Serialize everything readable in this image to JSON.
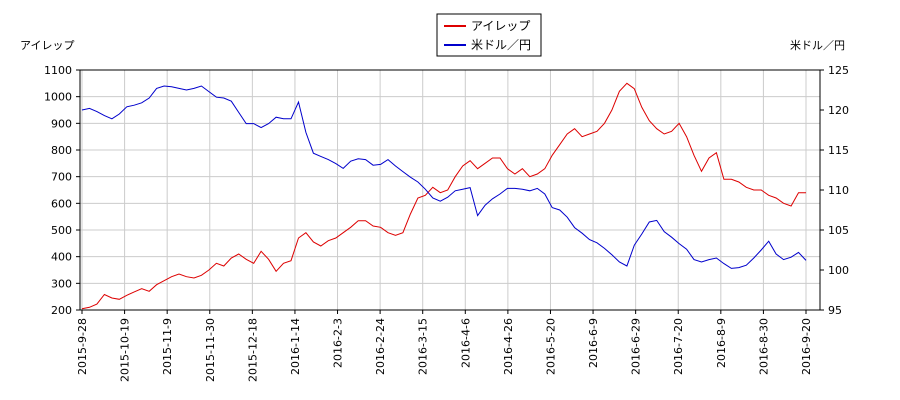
{
  "chart_data": {
    "type": "line",
    "y_left_label": "アイレップ",
    "y_right_label": "米ドル／円",
    "legend": "top-center",
    "grid": true,
    "colors": {
      "series_1": "#dd0000",
      "series_2": "#0000cc",
      "grid": "#cccccc"
    },
    "ylim_left": [
      200,
      1100
    ],
    "ylim_right": [
      95,
      125
    ],
    "y_left_ticks": [
      "200",
      "300",
      "400",
      "500",
      "600",
      "700",
      "800",
      "900",
      "1000",
      "1100"
    ],
    "y_right_ticks": [
      "95",
      "100",
      "105",
      "110",
      "115",
      "120",
      "125"
    ],
    "x_ticks": [
      "2015-9-28",
      "2015-10-19",
      "2015-11-9",
      "2015-11-30",
      "2015-12-18",
      "2016-1-14",
      "2016-2-3",
      "2016-2-24",
      "2016-3-15",
      "2016-4-6",
      "2016-4-26",
      "2016-5-20",
      "2016-6-9",
      "2016-6-29",
      "2016-7-20",
      "2016-8-9",
      "2016-8-30",
      "2016-9-20"
    ],
    "series": [
      {
        "name": "アイレップ",
        "axis": "left",
        "values": [
          205,
          210,
          222,
          258,
          245,
          240,
          255,
          268,
          280,
          270,
          295,
          310,
          325,
          335,
          325,
          320,
          330,
          350,
          375,
          365,
          395,
          410,
          390,
          375,
          420,
          390,
          345,
          375,
          385,
          470,
          490,
          455,
          440,
          460,
          470,
          490,
          510,
          535,
          535,
          515,
          510,
          490,
          480,
          490,
          560,
          620,
          630,
          660,
          640,
          650,
          700,
          740,
          760,
          730,
          750,
          770,
          770,
          730,
          710,
          730,
          700,
          710,
          730,
          780,
          820,
          860,
          880,
          850,
          860,
          870,
          900,
          950,
          1020,
          1050,
          1030,
          960,
          910,
          880,
          860,
          870,
          900,
          850,
          780,
          720,
          770,
          790,
          690,
          690,
          680,
          660,
          650,
          650,
          630,
          620,
          600,
          590,
          640,
          640
        ]
      },
      {
        "name": "米ドル／円",
        "axis": "right",
        "values": [
          120.0,
          120.2,
          119.8,
          119.3,
          118.9,
          119.5,
          120.4,
          120.6,
          120.9,
          121.5,
          122.7,
          123.0,
          122.9,
          122.7,
          122.5,
          122.7,
          123.0,
          122.3,
          121.6,
          121.5,
          121.1,
          119.7,
          118.3,
          118.3,
          117.8,
          118.3,
          119.1,
          118.9,
          118.9,
          121.0,
          117.2,
          114.6,
          114.2,
          113.8,
          113.3,
          112.7,
          113.6,
          113.9,
          113.8,
          113.1,
          113.2,
          113.8,
          113.0,
          112.3,
          111.6,
          111.0,
          110.1,
          109.0,
          108.6,
          109.1,
          109.9,
          110.1,
          110.3,
          106.8,
          108.1,
          108.9,
          109.5,
          110.2,
          110.2,
          110.1,
          109.9,
          110.2,
          109.5,
          107.8,
          107.5,
          106.6,
          105.3,
          104.6,
          103.8,
          103.4,
          102.7,
          101.9,
          101.0,
          100.5,
          103.1,
          104.5,
          106.0,
          106.2,
          104.8,
          104.1,
          103.3,
          102.6,
          101.3,
          101.0,
          101.3,
          101.5,
          100.8,
          100.2,
          100.3,
          100.6,
          101.5,
          102.5,
          103.6,
          102.0,
          101.3,
          101.6,
          102.2,
          101.2
        ]
      }
    ]
  }
}
